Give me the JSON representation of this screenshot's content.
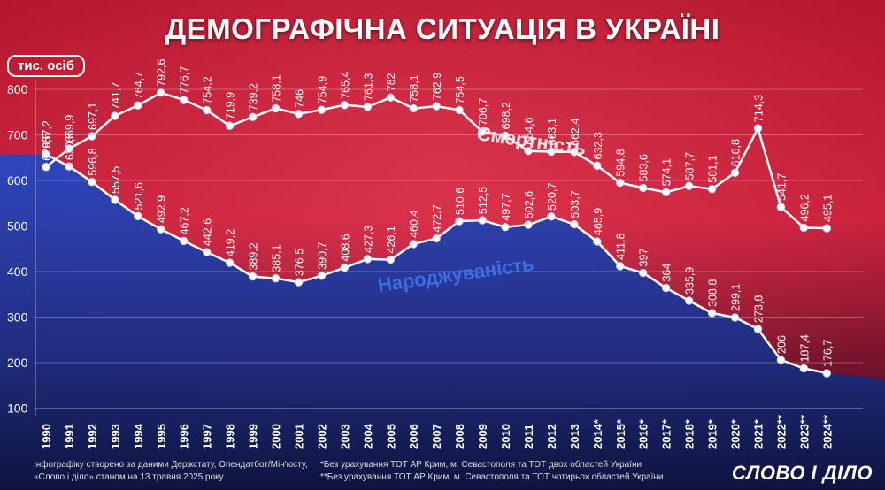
{
  "title": "ДЕМОГРАФІЧНА СИТУАЦІЯ В УКРАЇНІ",
  "unit_label": "тис. осіб",
  "footer": {
    "source_line1": "Інфографіку створено за даними Держстату, Опендатбот/Мін'юсту,",
    "source_line2": "«Слово і діло» станом на 13 травня 2025 року",
    "note1": "*Без урахування ТОТ АР Крим, м. Севастополя та ТОТ двох областей України",
    "note2": "**Без урахування ТОТ АР Крим, м. Севастополя та ТОТ чотирьох областей України"
  },
  "brand": "СЛОВО І ДІЛО",
  "watermark": "СЛОВО І ДІЛО",
  "colors": {
    "red_bg": "#d8203a",
    "blue_bg": "#1d3fb0",
    "line": "#ffffff",
    "mortality_label": "#fbe1e5",
    "births_label": "#3b6ee0"
  },
  "chart_data": {
    "type": "line",
    "title": "ДЕМОГРАФІЧНА СИТУАЦІЯ В УКРАЇНІ",
    "ylabel": "тис. осіб",
    "ylim": [
      100,
      800
    ],
    "yticks": [
      "800",
      "700",
      "600",
      "500",
      "400",
      "300",
      "200",
      "100"
    ],
    "grid": true,
    "categories": [
      "1990",
      "1991",
      "1992",
      "1993",
      "1994",
      "1995",
      "1996",
      "1997",
      "1998",
      "1999",
      "2000",
      "2001",
      "2002",
      "2003",
      "2004",
      "2005",
      "2006",
      "2007",
      "2008",
      "2009",
      "2010",
      "2011",
      "2012",
      "2013",
      "2014*",
      "2015*",
      "2016*",
      "2017*",
      "2018*",
      "2019*",
      "2020*",
      "2021*",
      "2022**",
      "2023**",
      "2024**"
    ],
    "series": [
      {
        "name": "Смертність",
        "values": [
          629.6,
          669.9,
          697.1,
          741.7,
          764.7,
          792.6,
          776.7,
          754.2,
          719.9,
          739.2,
          758.1,
          746,
          754.9,
          765.4,
          761.3,
          782,
          758.1,
          762.9,
          754.5,
          706.7,
          698.2,
          664.6,
          663.1,
          662.4,
          632.3,
          594.8,
          583.6,
          574.1,
          587.7,
          581.1,
          616.8,
          714.3,
          541.7,
          496.2,
          495.1
        ],
        "labels": [
          "629,6",
          "669,9",
          "697,1",
          "741,7",
          "764,7",
          "792,6",
          "776,7",
          "754,2",
          "719,9",
          "739,2",
          "758,1",
          "746",
          "754,9",
          "765,4",
          "761,3",
          "782",
          "758,1",
          "762,9",
          "754,5",
          "706,7",
          "698,2",
          "664,6",
          "663,1",
          "662,4",
          "632,3",
          "594,8",
          "583,6",
          "574,1",
          "587,7",
          "581,1",
          "616,8",
          "714,3",
          "541,7",
          "496,2",
          "495,1"
        ]
      },
      {
        "name": "Народжуваність",
        "values": [
          657.2,
          630.8,
          596.8,
          557.5,
          521.6,
          492.9,
          467.2,
          442.6,
          419.2,
          389.2,
          385.1,
          376.5,
          390.7,
          408.6,
          427.3,
          426.1,
          460.4,
          472.7,
          510.6,
          512.5,
          497.7,
          502.6,
          520.7,
          503.7,
          465.9,
          411.8,
          397,
          364,
          335.9,
          308.8,
          299.1,
          273.8,
          206,
          187.4,
          176.7
        ],
        "labels": [
          "657,2",
          "630,8",
          "596,8",
          "557,5",
          "521,6",
          "492,9",
          "467,2",
          "442,6",
          "419,2",
          "389,2",
          "385,1",
          "376,5",
          "390,7",
          "408,6",
          "427,3",
          "426,1",
          "460,4",
          "472,7",
          "510,6",
          "512,5",
          "497,7",
          "502,6",
          "520,7",
          "503,7",
          "465,9",
          "411,8",
          "397",
          "364",
          "335,9",
          "308,8",
          "299,1",
          "273,8",
          "206",
          "187,4",
          "176,7"
        ]
      }
    ]
  }
}
